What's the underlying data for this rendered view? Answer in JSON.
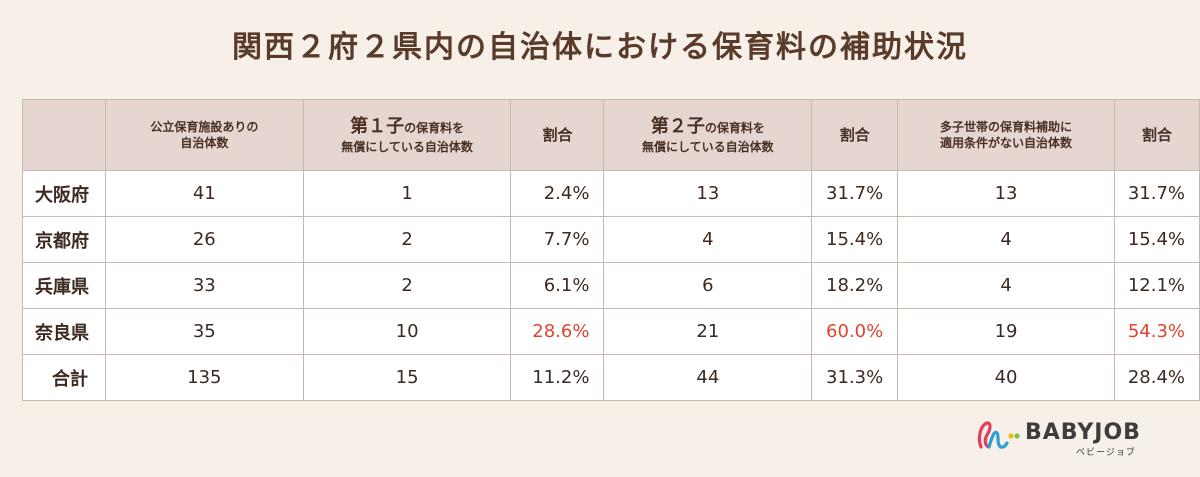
{
  "title": "関西２府２県内の自治体における保育料の補助状況",
  "table": {
    "headers": [
      "",
      [
        "公立保育施設ありの",
        "自治体数"
      ],
      [
        "第１子",
        "の保育料を",
        "無償にしている自治体数"
      ],
      "割合",
      [
        "第２子",
        "の保育料を",
        "無償にしている自治体数"
      ],
      "割合",
      [
        "多子世帯の保育料補助に",
        "適用条件がない自治体数"
      ],
      "割合"
    ],
    "rows": [
      [
        "大阪府",
        "41",
        "1",
        "2.4%",
        "13",
        "31.7%",
        "13",
        "31.7%"
      ],
      [
        "京都府",
        "26",
        "2",
        "7.7%",
        "4",
        "15.4%",
        "4",
        "15.4%"
      ],
      [
        "兵庫県",
        "33",
        "2",
        "6.1%",
        "6",
        "18.2%",
        "4",
        "12.1%"
      ],
      [
        "奈良県",
        "35",
        "10",
        "28.6%",
        "21",
        "60.0%",
        "19",
        "54.3%"
      ],
      [
        "合計",
        "135",
        "15",
        "11.2%",
        "44",
        "31.3%",
        "40",
        "28.4%"
      ]
    ]
  },
  "colors": {
    "background": "#f6f0e8",
    "header_bg": "#e6d6d2",
    "highlight": "#e0432f",
    "text": "#4a3024"
  },
  "logo": {
    "name": "BABYJOB",
    "sub": "ベビージョブ"
  }
}
